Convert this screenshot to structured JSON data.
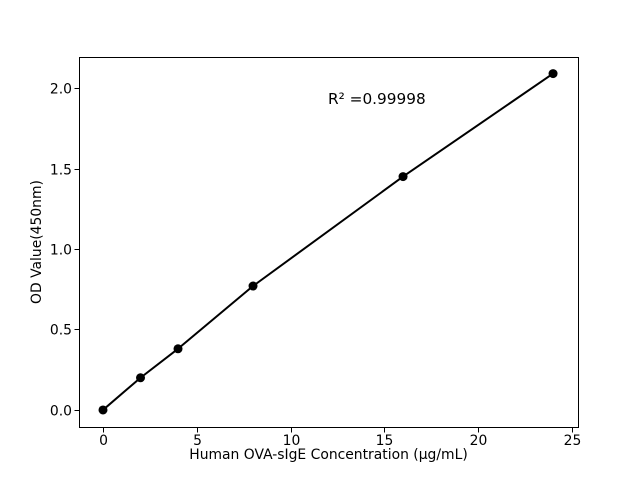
{
  "figure": {
    "background": "#ffffff"
  },
  "chart_data": {
    "type": "line",
    "title": "",
    "xlabel": "Human OVA-sIgE Concentration (μg/mL)",
    "ylabel": "OD Value(450nm)",
    "annotation": {
      "text": "R² =0.99998"
    },
    "x": [
      0,
      2,
      4,
      8,
      16,
      24
    ],
    "y": [
      0.0,
      0.2,
      0.38,
      0.77,
      1.45,
      2.09
    ],
    "x_ticks": [
      "0",
      "5",
      "10",
      "15",
      "20",
      "25"
    ],
    "y_ticks": [
      "0.0",
      "0.5",
      "1.0",
      "1.5",
      "2.0"
    ],
    "xlim": [
      -1.28,
      25.33
    ],
    "ylim": [
      -0.106,
      2.193
    ],
    "line_color": "#000000",
    "marker_color": "#000000",
    "axes_color": "#000000",
    "grid": false,
    "legend": null
  }
}
